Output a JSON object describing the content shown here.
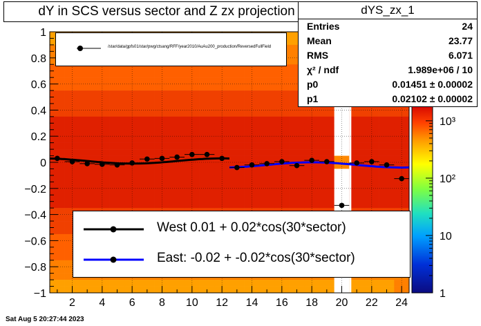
{
  "title": "dY in SCS versus sector and Z zx projection",
  "stats": {
    "name": "dYS_zx_1",
    "rows": [
      {
        "label": "Entries",
        "value": "24"
      },
      {
        "label": "Mean",
        "value": "23.77"
      },
      {
        "label": "RMS",
        "value": "6.071"
      },
      {
        "label": "χ² / ndf",
        "value": "1.989e+06 / 10"
      },
      {
        "label": "p0",
        "value": "0.01451 ± 0.00002"
      },
      {
        "label": "p1",
        "value": "0.02102 ± 0.00002"
      }
    ]
  },
  "legend_top": {
    "label": "/star/data/gpfs01/star/pwg/ctsang/RFF/year2010/AuAu200_production/ReversedFullField"
  },
  "legend_fits": [
    {
      "label": "West  0.01 +  0.02*cos(30*sector)",
      "color": "#000000"
    },
    {
      "label": "East: -0.02 + -0.02*cos(30*sector)",
      "color": "#0000ff"
    }
  ],
  "datestamp": "Sat Aug  5 20:27:44 2023",
  "colorbar": {
    "ticks": [
      "1",
      "10",
      "10²",
      "10³"
    ]
  },
  "chart_data": {
    "type": "scatter",
    "xlim": [
      0.5,
      24.5
    ],
    "ylim": [
      -1,
      1
    ],
    "x_ticks": [
      2,
      4,
      6,
      8,
      10,
      12,
      14,
      16,
      18,
      20,
      22,
      24
    ],
    "y_ticks": [
      -1,
      -0.8,
      -0.6,
      -0.4,
      -0.2,
      0,
      0.2,
      0.4,
      0.6,
      0.8,
      1
    ],
    "y_tick_labels": [
      "−1",
      "−0.8",
      "−0.6",
      "−0.4",
      "−0.2",
      "0",
      "0.2",
      "0.4",
      "0.6",
      "0.8",
      "1"
    ],
    "points": {
      "x": [
        1,
        2,
        3,
        4,
        5,
        6,
        7,
        8,
        9,
        10,
        11,
        12,
        13,
        14,
        15,
        16,
        17,
        18,
        19,
        20,
        21,
        22,
        23,
        24
      ],
      "y": [
        0.03,
        0.005,
        -0.01,
        -0.015,
        -0.02,
        -0.005,
        0.025,
        0.03,
        0.04,
        0.06,
        0.06,
        0.03,
        -0.04,
        -0.02,
        -0.01,
        0.005,
        -0.025,
        0.015,
        0.005,
        -0.33,
        -0.005,
        0.005,
        -0.02,
        -0.125
      ]
    },
    "fits": [
      {
        "name": "West",
        "p0": 0.01,
        "p1": 0.02,
        "xrange": [
          0.5,
          12.5
        ],
        "color": "#000000"
      },
      {
        "name": "East",
        "p0": -0.02,
        "p1": -0.02,
        "xrange": [
          12.5,
          24.5
        ],
        "color": "#0000ff"
      }
    ]
  }
}
